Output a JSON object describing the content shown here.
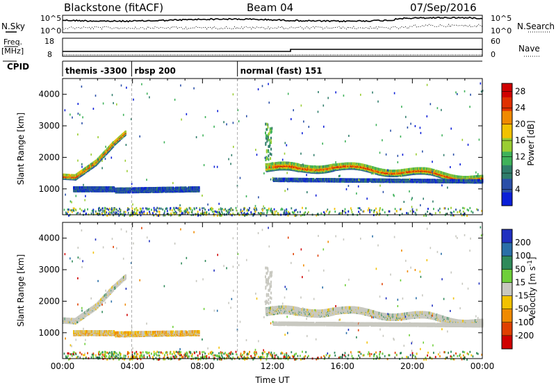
{
  "header": {
    "radar": "Blackstone (fitACF)",
    "beam": "Beam 04",
    "date": "07/Sep/2016"
  },
  "labels": {
    "nsky": "N.Sky",
    "nsearch": "N.Search",
    "freq_top": "Freq.",
    "freq_unit": "[MHz]",
    "nave": "Nave",
    "cpid": "CPID"
  },
  "noise_panel": {
    "left_ticks": [
      "10^5",
      "10^0"
    ],
    "right_ticks": [
      "10^5",
      "10^0"
    ]
  },
  "freq_panel": {
    "left_ticks": [
      "18",
      "8"
    ],
    "right_ticks": [
      "60",
      "0"
    ]
  },
  "cpid_panel": {
    "segments": [
      {
        "label": "themis -3300",
        "start_hour": 0.0
      },
      {
        "label": "rbsp 200",
        "start_hour": 3.95
      },
      {
        "label": "normal (fast) 151",
        "start_hour": 10.0
      }
    ]
  },
  "chart_data": [
    {
      "type": "heatmap",
      "name": "power",
      "xlabel": "",
      "ylabel": "Slant Range [km]",
      "x_ticks": [
        "00:00",
        "04:00",
        "08:00",
        "12:00",
        "16:00",
        "20:00",
        "00:00"
      ],
      "x_range_hours": [
        0,
        24
      ],
      "ylim": [
        180,
        4500
      ],
      "y_ticks": [
        1000,
        2000,
        3000,
        4000
      ],
      "colorbar": {
        "label": "Power [dB]",
        "ticks": [
          4,
          8,
          12,
          16,
          20,
          24,
          28
        ],
        "range": [
          0,
          30
        ],
        "colors": [
          "#0a1fd8",
          "#2a4fa8",
          "#2f7d6a",
          "#3fb25a",
          "#9acd32",
          "#f2c200",
          "#f08a00",
          "#e03000",
          "#d00000"
        ]
      },
      "echo_bands": [
        {
          "t0": 0.0,
          "t1": 0.7,
          "r0": 1400,
          "r1": 1380,
          "w": 140
        },
        {
          "t0": 0.7,
          "t1": 1.9,
          "r0": 1380,
          "r1": 1850,
          "w": 150
        },
        {
          "t0": 1.9,
          "t1": 2.9,
          "r0": 1850,
          "r1": 2450,
          "w": 140
        },
        {
          "t0": 2.9,
          "t1": 3.6,
          "r0": 2450,
          "r1": 2800,
          "w": 110
        },
        {
          "t0": 11.6,
          "t1": 13.5,
          "r0": 1700,
          "r1": 1650,
          "w": 220
        },
        {
          "t0": 13.5,
          "t1": 15.5,
          "r0": 1650,
          "r1": 1720,
          "w": 200
        },
        {
          "t0": 15.5,
          "t1": 18.0,
          "r0": 1720,
          "r1": 1600,
          "w": 180
        },
        {
          "t0": 18.0,
          "t1": 21.0,
          "r0": 1600,
          "r1": 1500,
          "w": 180
        },
        {
          "t0": 21.0,
          "t1": 24.0,
          "r0": 1500,
          "r1": 1300,
          "w": 170
        },
        {
          "t0": 0.6,
          "t1": 3.0,
          "r0": 1000,
          "r1": 1000,
          "w": 130
        },
        {
          "t0": 3.0,
          "t1": 7.8,
          "r0": 960,
          "r1": 1000,
          "w": 130
        },
        {
          "t0": 12.0,
          "t1": 24.0,
          "r0": 1300,
          "r1": 1250,
          "w": 80
        }
      ]
    },
    {
      "type": "heatmap",
      "name": "velocity",
      "xlabel": "Time UT",
      "ylabel": "Slant Range [km]",
      "x_ticks": [
        "00:00",
        "04:00",
        "08:00",
        "12:00",
        "16:00",
        "20:00",
        "00:00"
      ],
      "x_range_hours": [
        0,
        24
      ],
      "ylim": [
        180,
        4500
      ],
      "y_ticks": [
        1000,
        2000,
        3000,
        4000
      ],
      "colorbar": {
        "label": "Velocity [m s^-1]",
        "ticks": [
          200,
          100,
          50,
          15,
          -15,
          -50,
          -100,
          -200
        ],
        "colors": [
          "#2030c0",
          "#2a6fa8",
          "#2f8a5a",
          "#6fcf3a",
          "#c8c8c0",
          "#f2c200",
          "#f08a00",
          "#e04000",
          "#d00000"
        ]
      }
    }
  ]
}
